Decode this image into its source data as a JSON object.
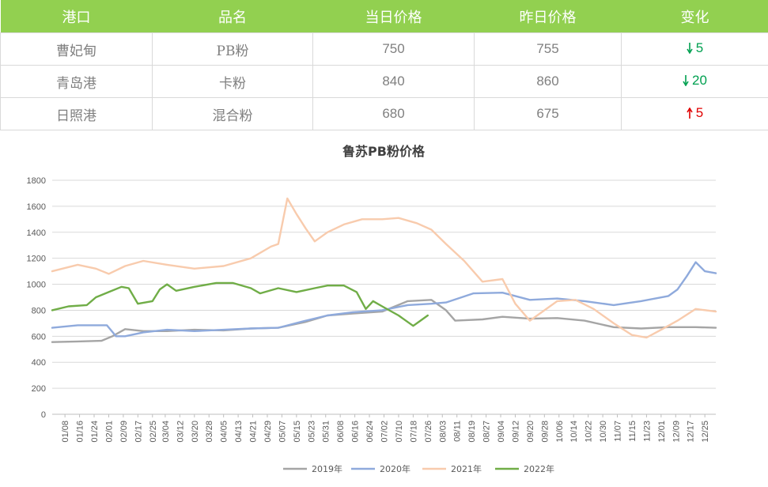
{
  "table": {
    "headers": [
      "港口",
      "品名",
      "当日价格",
      "昨日价格",
      "变化"
    ],
    "rows": [
      {
        "port": "曹妃甸",
        "product": "PB粉",
        "today": "750",
        "yesterday": "755",
        "change": "5",
        "direction": "down"
      },
      {
        "port": "青岛港",
        "product": "卡粉",
        "today": "840",
        "yesterday": "860",
        "change": "20",
        "direction": "down"
      },
      {
        "port": "日照港",
        "product": "混合粉",
        "today": "680",
        "yesterday": "675",
        "change": "5",
        "direction": "up"
      }
    ],
    "header_color": "#92d050",
    "down_color": "#00a050",
    "up_color": "#e00000"
  },
  "chart_data": {
    "type": "line",
    "title": "鲁苏PB粉价格",
    "ylim": [
      0,
      1800
    ],
    "yticks": [
      0,
      200,
      400,
      600,
      800,
      1000,
      1200,
      1400,
      1600,
      1800
    ],
    "xlim": [
      "01/01",
      "12/31"
    ],
    "xticks": [
      "01/08",
      "01/16",
      "01/24",
      "02/01",
      "02/09",
      "02/17",
      "02/25",
      "03/04",
      "03/12",
      "03/20",
      "03/28",
      "04/05",
      "04/13",
      "04/21",
      "04/29",
      "05/07",
      "05/15",
      "05/23",
      "05/31",
      "06/08",
      "06/16",
      "06/24",
      "07/02",
      "07/10",
      "07/18",
      "07/26",
      "08/03",
      "08/11",
      "08/19",
      "08/27",
      "09/04",
      "09/12",
      "09/20",
      "09/28",
      "10/06",
      "10/14",
      "10/22",
      "10/30",
      "11/07",
      "11/15",
      "11/23",
      "12/01",
      "12/09",
      "12/17",
      "12/25"
    ],
    "grid": true,
    "legend_position": "bottom",
    "series": [
      {
        "name": "2019年",
        "color": "#a5a5a5",
        "x": [
          "01/01",
          "01/15",
          "01/28",
          "02/03",
          "02/10",
          "02/20",
          "03/05",
          "03/20",
          "04/05",
          "04/20",
          "05/05",
          "05/20",
          "06/01",
          "06/15",
          "07/01",
          "07/15",
          "07/28",
          "08/05",
          "08/10",
          "08/25",
          "09/05",
          "09/20",
          "10/05",
          "10/20",
          "11/05",
          "11/20",
          "12/05",
          "12/20",
          "12/31"
        ],
        "y": [
          555,
          560,
          565,
          600,
          655,
          640,
          640,
          650,
          645,
          660,
          665,
          710,
          760,
          775,
          790,
          870,
          880,
          800,
          720,
          730,
          750,
          735,
          740,
          720,
          670,
          660,
          670,
          670,
          665
        ]
      },
      {
        "name": "2020年",
        "color": "#8faadc",
        "x": [
          "01/01",
          "01/15",
          "01/31",
          "02/05",
          "02/10",
          "02/20",
          "03/05",
          "03/20",
          "04/05",
          "04/20",
          "05/05",
          "05/20",
          "06/01",
          "06/15",
          "07/01",
          "07/15",
          "07/28",
          "08/05",
          "08/20",
          "09/05",
          "09/20",
          "10/05",
          "10/20",
          "11/05",
          "11/20",
          "12/05",
          "12/10",
          "12/15",
          "12/20",
          "12/25",
          "12/31"
        ],
        "y": [
          665,
          685,
          685,
          600,
          600,
          630,
          650,
          640,
          650,
          660,
          665,
          720,
          760,
          785,
          800,
          840,
          850,
          860,
          930,
          935,
          880,
          890,
          870,
          840,
          870,
          910,
          960,
          1060,
          1170,
          1100,
          1085
        ]
      },
      {
        "name": "2021年",
        "color": "#f8cbad",
        "x": [
          "01/01",
          "01/15",
          "01/25",
          "02/01",
          "02/10",
          "02/20",
          "03/05",
          "03/20",
          "04/05",
          "04/20",
          "05/01",
          "05/05",
          "05/10",
          "05/15",
          "05/20",
          "05/25",
          "06/01",
          "06/10",
          "06/20",
          "07/01",
          "07/10",
          "07/20",
          "07/28",
          "08/05",
          "08/15",
          "08/25",
          "09/05",
          "09/12",
          "09/20",
          "10/05",
          "10/15",
          "10/25",
          "11/05",
          "11/15",
          "11/23",
          "12/01",
          "12/10",
          "12/20",
          "12/31"
        ],
        "y": [
          1100,
          1150,
          1120,
          1080,
          1140,
          1180,
          1150,
          1120,
          1140,
          1200,
          1290,
          1310,
          1660,
          1540,
          1430,
          1330,
          1400,
          1460,
          1500,
          1500,
          1510,
          1470,
          1420,
          1310,
          1180,
          1020,
          1040,
          850,
          720,
          870,
          880,
          810,
          700,
          610,
          590,
          650,
          720,
          810,
          790
        ]
      },
      {
        "name": "2022年",
        "color": "#70ad47",
        "x": [
          "01/01",
          "01/10",
          "01/20",
          "01/25",
          "02/01",
          "02/08",
          "02/12",
          "02/17",
          "02/25",
          "03/01",
          "03/05",
          "03/10",
          "03/20",
          "04/01",
          "04/10",
          "04/20",
          "04/25",
          "05/05",
          "05/15",
          "05/25",
          "06/01",
          "06/10",
          "06/17",
          "06/22",
          "06/26",
          "07/01",
          "07/10",
          "07/18",
          "07/22",
          "07/26"
        ],
        "y": [
          800,
          830,
          840,
          900,
          940,
          980,
          970,
          850,
          870,
          960,
          1000,
          950,
          980,
          1010,
          1010,
          970,
          930,
          970,
          940,
          970,
          990,
          990,
          940,
          810,
          870,
          830,
          760,
          680,
          720,
          760
        ]
      }
    ]
  }
}
